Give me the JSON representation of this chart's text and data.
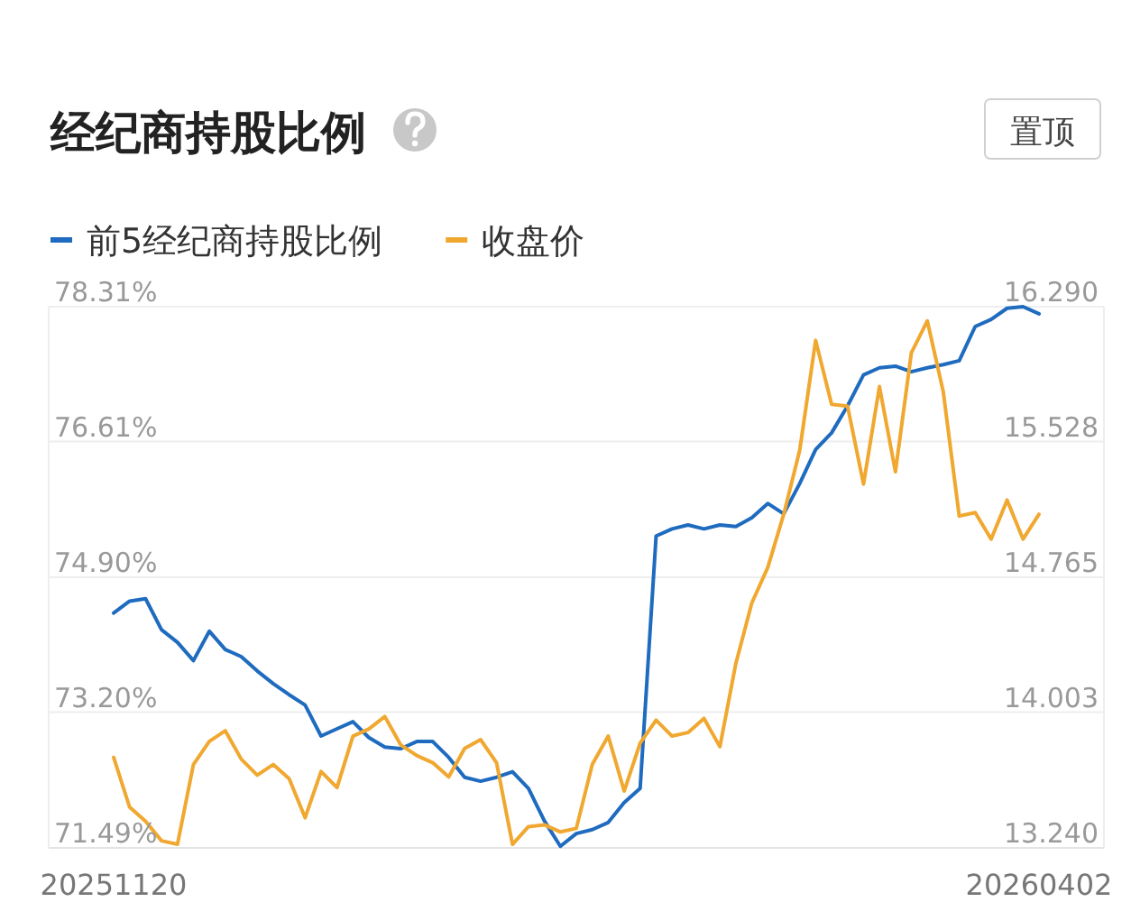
{
  "chart_data": {
    "type": "line",
    "title": "经纪商持股比例",
    "annotations": [
      "置顶"
    ],
    "legend": "top left",
    "grid": "y",
    "categories": [
      "20251120",
      null,
      null,
      null,
      null,
      null,
      null,
      null,
      null,
      null,
      null,
      null,
      null,
      null,
      null,
      null,
      null,
      null,
      null,
      null,
      null,
      null,
      null,
      null,
      null,
      null,
      null,
      null,
      null,
      null,
      null,
      null,
      null,
      null,
      null,
      null,
      null,
      null,
      null,
      null,
      null,
      null,
      null,
      null,
      null,
      null,
      null,
      null,
      null,
      null,
      null,
      null,
      null,
      null,
      null,
      null,
      null,
      null,
      "20260402"
    ],
    "ylim": [
      71.49,
      78.31
    ],
    "yticks": [
      {
        "value": 71.49,
        "label": "71.49%"
      },
      {
        "value": 73.2,
        "label": "73.20%"
      },
      {
        "value": 74.9,
        "label": "74.90%"
      },
      {
        "value": 76.61,
        "label": "76.61%"
      },
      {
        "value": 78.31,
        "label": "78.31%"
      }
    ],
    "y2lim": [
      13.24,
      16.29
    ],
    "y2ticks": [
      {
        "value": 13.24,
        "label": "13.240"
      },
      {
        "value": 14.003,
        "label": "14.003"
      },
      {
        "value": 14.765,
        "label": "14.765"
      },
      {
        "value": 15.528,
        "label": "15.528"
      },
      {
        "value": 16.29,
        "label": "16.290"
      }
    ],
    "series": [
      {
        "name": "前5经纪商持股比例",
        "color": "#1f6bbf",
        "values": [
          74.45,
          74.6,
          74.63,
          74.24,
          74.08,
          73.85,
          74.22,
          73.99,
          73.9,
          73.72,
          73.56,
          73.42,
          73.29,
          72.9,
          72.99,
          73.08,
          72.88,
          72.76,
          72.74,
          72.83,
          72.83,
          72.63,
          72.38,
          72.33,
          72.38,
          72.45,
          72.24,
          71.83,
          71.51,
          71.67,
          71.72,
          71.81,
          72.06,
          72.24,
          75.42,
          75.51,
          75.56,
          75.51,
          75.56,
          75.54,
          75.65,
          75.83,
          75.7,
          76.08,
          76.51,
          76.72,
          77.06,
          77.45,
          77.54,
          77.56,
          77.49,
          77.54,
          77.58,
          77.63,
          78.06,
          78.15,
          78.29,
          78.31,
          78.22
        ]
      },
      {
        "name": "收盘价",
        "color": "#f0a830",
        "axis": "y2",
        "values": [
          13.75,
          13.47,
          13.39,
          13.28,
          13.26,
          13.71,
          13.84,
          13.9,
          13.74,
          13.65,
          13.71,
          13.63,
          13.41,
          13.67,
          13.58,
          13.87,
          13.91,
          13.98,
          13.82,
          13.76,
          13.72,
          13.64,
          13.8,
          13.85,
          13.72,
          13.26,
          13.36,
          13.37,
          13.33,
          13.35,
          13.71,
          13.87,
          13.56,
          13.83,
          13.96,
          13.87,
          13.89,
          13.97,
          13.81,
          14.28,
          14.62,
          14.82,
          15.12,
          15.48,
          16.1,
          15.74,
          15.73,
          15.29,
          15.84,
          15.36,
          16.03,
          16.21,
          15.81,
          15.11,
          15.13,
          14.98,
          15.2,
          14.98,
          15.12
        ]
      }
    ]
  }
}
